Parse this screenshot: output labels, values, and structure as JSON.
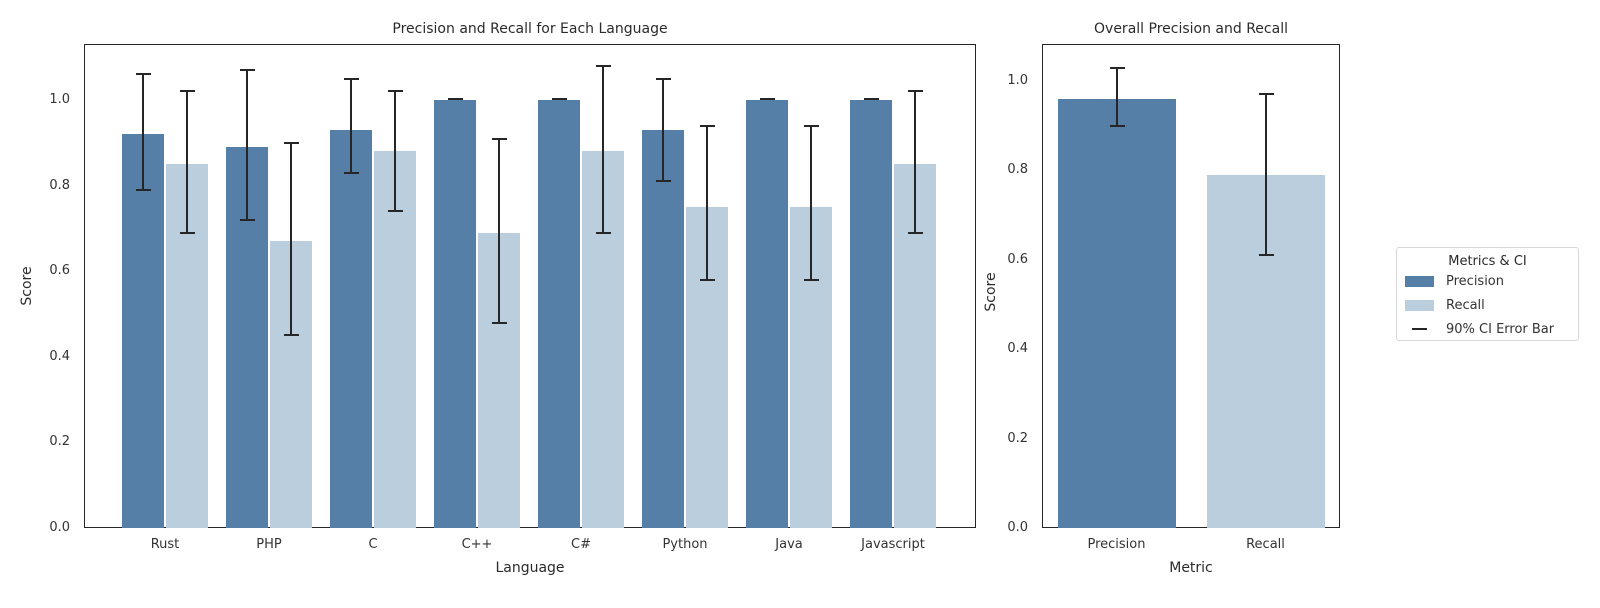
{
  "figure": {
    "background": "#ffffff"
  },
  "palette": {
    "precision": "#567FA7",
    "recall": "#BBCEDD",
    "error_bar": "#262626"
  },
  "chart_data": [
    {
      "type": "bar",
      "title": "Precision and Recall for Each Language",
      "xlabel": "Language",
      "ylabel": "Score",
      "categories": [
        "Rust",
        "PHP",
        "C",
        "C++",
        "C#",
        "Python",
        "Java",
        "Javascript"
      ],
      "series": [
        {
          "name": "Precision",
          "color": "#567FA7",
          "values": [
            0.92,
            0.89,
            0.93,
            1.0,
            1.0,
            0.93,
            1.0,
            1.0
          ],
          "ci_low": [
            0.79,
            0.72,
            0.83,
            1.0,
            1.0,
            0.81,
            1.0,
            1.0
          ],
          "ci_high": [
            1.06,
            1.07,
            1.05,
            1.0,
            1.0,
            1.05,
            1.0,
            1.0
          ]
        },
        {
          "name": "Recall",
          "color": "#BBCEDD",
          "values": [
            0.85,
            0.67,
            0.88,
            0.69,
            0.88,
            0.75,
            0.75,
            0.85
          ],
          "ci_low": [
            0.69,
            0.45,
            0.74,
            0.48,
            0.69,
            0.58,
            0.58,
            0.69
          ],
          "ci_high": [
            1.02,
            0.9,
            1.02,
            0.91,
            1.08,
            0.94,
            0.94,
            1.02
          ]
        }
      ],
      "yticks": [
        0.0,
        0.2,
        0.4,
        0.6,
        0.8,
        1.0
      ],
      "ylim": [
        0,
        1.13
      ],
      "grid": false,
      "error_bar_type": "90% CI"
    },
    {
      "type": "bar",
      "title": "Overall Precision and Recall",
      "xlabel": "Metric",
      "ylabel": "Score",
      "categories": [
        "Precision",
        "Recall"
      ],
      "series": [
        {
          "name": "Score",
          "colors": [
            "#567FA7",
            "#BBCEDD"
          ],
          "values": [
            0.96,
            0.79
          ],
          "ci_low": [
            0.9,
            0.61
          ],
          "ci_high": [
            1.03,
            0.97
          ]
        }
      ],
      "yticks": [
        0.0,
        0.2,
        0.4,
        0.6,
        0.8,
        1.0
      ],
      "ylim": [
        0,
        1.09
      ],
      "grid": false,
      "error_bar_type": "90% CI"
    }
  ],
  "legend": {
    "title": "Metrics & CI",
    "items": [
      {
        "label": "Precision",
        "marker": "patch",
        "color": "#567FA7"
      },
      {
        "label": "Recall",
        "marker": "patch",
        "color": "#BBCEDD"
      },
      {
        "label": "90% CI Error Bar",
        "marker": "line",
        "color": "#262626"
      }
    ]
  }
}
